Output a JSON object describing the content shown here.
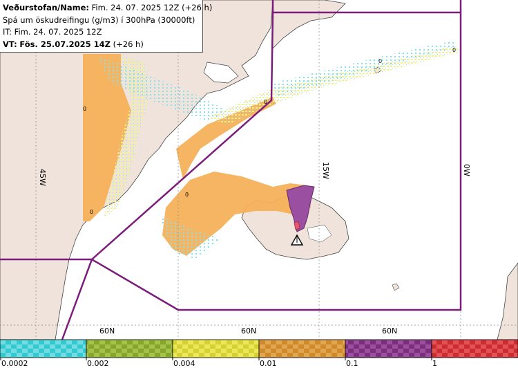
{
  "header": {
    "line1_label": "Veðurstofan/Name:",
    "line1_value": "Fim. 24. 07. 2025 12Z (+26 h)",
    "line2": "Spá um öskudreifingu (g/m3) í 300hPa (30000ft)",
    "line3": "IT: Fim. 24. 07. 2025 12Z",
    "line4_label": "VT:",
    "line4_value": "Fös. 25.07.2025 14Z",
    "line4_suffix": "(+26 h)"
  },
  "map": {
    "meridian_labels": [
      "45W",
      "15W",
      "0W"
    ],
    "parallel_labels": [
      "60N",
      "60N",
      "60N"
    ],
    "contour_labels": [
      "0",
      "0",
      "0",
      "0",
      "0",
      "0"
    ],
    "colors": {
      "land": "#efe3dc",
      "ocean": "#ffffff",
      "boundary": "#7b1d7b",
      "ash_orange": "#f6b15a",
      "ash_yellow": "#f5f08a",
      "ash_cyan": "#7fe3f0",
      "ash_purple": "#9a4fa0"
    }
  },
  "legend": {
    "ticks": [
      "0.0002",
      "0.002",
      "0.004",
      "0.01",
      "0.1",
      "1"
    ],
    "colors": [
      "#36c8cf",
      "#84a62a",
      "#d6d132",
      "#cf8a2c",
      "#7b2f7b",
      "#cc2b30"
    ]
  }
}
